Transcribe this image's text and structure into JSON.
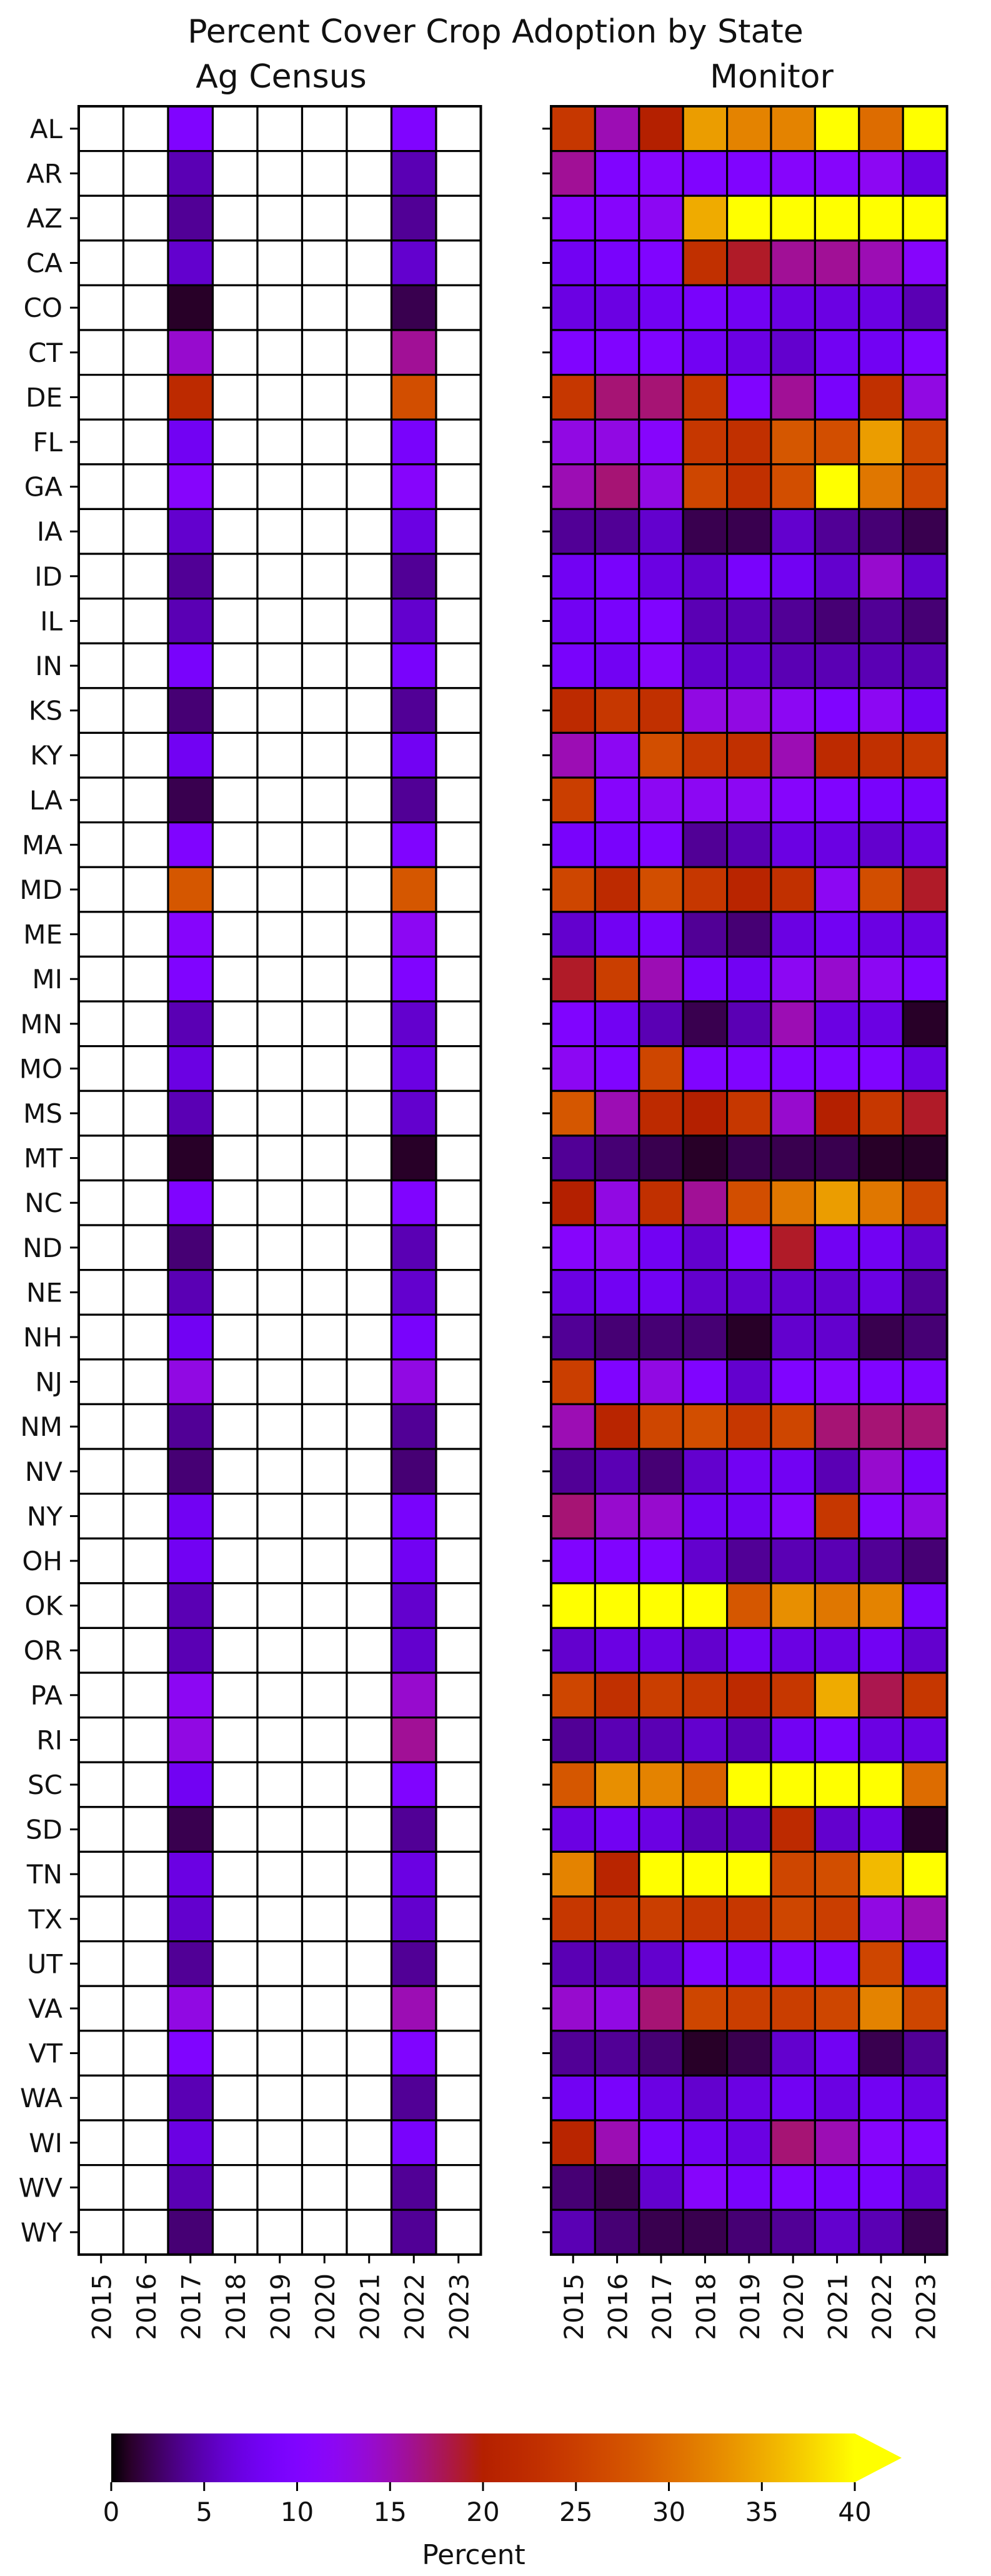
{
  "chart_data": {
    "type": "heatmap",
    "title": "Percent Cover Crop Adoption by State",
    "colorbar": {
      "label": "Percent",
      "min": 0,
      "max": 40,
      "ticks": [
        0,
        5,
        10,
        15,
        20,
        25,
        30,
        35,
        40
      ],
      "extend": "max",
      "colormap": "gnuplot"
    },
    "states": [
      "AL",
      "AR",
      "AZ",
      "CA",
      "CO",
      "CT",
      "DE",
      "FL",
      "GA",
      "IA",
      "ID",
      "IL",
      "IN",
      "KS",
      "KY",
      "LA",
      "MA",
      "MD",
      "ME",
      "MI",
      "MN",
      "MO",
      "MS",
      "MT",
      "NC",
      "ND",
      "NE",
      "NH",
      "NJ",
      "NM",
      "NV",
      "NY",
      "OH",
      "OK",
      "OR",
      "PA",
      "RI",
      "SC",
      "SD",
      "TN",
      "TX",
      "UT",
      "VA",
      "VT",
      "WA",
      "WI",
      "WV",
      "WY"
    ],
    "years": [
      "2015",
      "2016",
      "2017",
      "2018",
      "2019",
      "2020",
      "2021",
      "2022",
      "2023"
    ],
    "panels": [
      {
        "title": "Ag Census",
        "comment": "values per state, columns 2015..2023; null = no data",
        "values": [
          [
            null,
            null,
            10,
            null,
            null,
            null,
            null,
            10,
            null
          ],
          [
            null,
            null,
            5,
            null,
            null,
            null,
            null,
            5,
            null
          ],
          [
            null,
            null,
            4,
            null,
            null,
            null,
            null,
            4,
            null
          ],
          [
            null,
            null,
            6,
            null,
            null,
            null,
            null,
            6,
            null
          ],
          [
            null,
            null,
            1,
            null,
            null,
            null,
            null,
            2,
            null
          ],
          [
            null,
            null,
            14,
            null,
            null,
            null,
            null,
            16,
            null
          ],
          [
            null,
            null,
            22,
            null,
            null,
            null,
            null,
            27,
            null
          ],
          [
            null,
            null,
            8,
            null,
            null,
            null,
            null,
            9,
            null
          ],
          [
            null,
            null,
            11,
            null,
            null,
            null,
            null,
            11,
            null
          ],
          [
            null,
            null,
            6,
            null,
            null,
            null,
            null,
            7,
            null
          ],
          [
            null,
            null,
            4,
            null,
            null,
            null,
            null,
            4,
            null
          ],
          [
            null,
            null,
            5,
            null,
            null,
            null,
            null,
            6,
            null
          ],
          [
            null,
            null,
            9,
            null,
            null,
            null,
            null,
            9,
            null
          ],
          [
            null,
            null,
            3,
            null,
            null,
            null,
            null,
            4,
            null
          ],
          [
            null,
            null,
            8,
            null,
            null,
            null,
            null,
            8,
            null
          ],
          [
            null,
            null,
            2,
            null,
            null,
            null,
            null,
            4,
            null
          ],
          [
            null,
            null,
            10,
            null,
            null,
            null,
            null,
            10,
            null
          ],
          [
            null,
            null,
            28,
            null,
            null,
            null,
            null,
            28,
            null
          ],
          [
            null,
            null,
            11,
            null,
            null,
            null,
            null,
            12,
            null
          ],
          [
            null,
            null,
            10,
            null,
            null,
            null,
            null,
            10,
            null
          ],
          [
            null,
            null,
            5,
            null,
            null,
            null,
            null,
            6,
            null
          ],
          [
            null,
            null,
            7,
            null,
            null,
            null,
            null,
            7,
            null
          ],
          [
            null,
            null,
            5,
            null,
            null,
            null,
            null,
            6,
            null
          ],
          [
            null,
            null,
            1,
            null,
            null,
            null,
            null,
            1,
            null
          ],
          [
            null,
            null,
            10,
            null,
            null,
            null,
            null,
            10,
            null
          ],
          [
            null,
            null,
            3,
            null,
            null,
            null,
            null,
            5,
            null
          ],
          [
            null,
            null,
            5,
            null,
            null,
            null,
            null,
            6,
            null
          ],
          [
            null,
            null,
            8,
            null,
            null,
            null,
            null,
            9,
            null
          ],
          [
            null,
            null,
            13,
            null,
            null,
            null,
            null,
            13,
            null
          ],
          [
            null,
            null,
            4,
            null,
            null,
            null,
            null,
            4,
            null
          ],
          [
            null,
            null,
            3,
            null,
            null,
            null,
            null,
            3,
            null
          ],
          [
            null,
            null,
            8,
            null,
            null,
            null,
            null,
            9,
            null
          ],
          [
            null,
            null,
            8,
            null,
            null,
            null,
            null,
            8,
            null
          ],
          [
            null,
            null,
            5,
            null,
            null,
            null,
            null,
            6,
            null
          ],
          [
            null,
            null,
            5,
            null,
            null,
            null,
            null,
            6,
            null
          ],
          [
            null,
            null,
            12,
            null,
            null,
            null,
            null,
            14,
            null
          ],
          [
            null,
            null,
            13,
            null,
            null,
            null,
            null,
            16,
            null
          ],
          [
            null,
            null,
            8,
            null,
            null,
            null,
            null,
            10,
            null
          ],
          [
            null,
            null,
            2,
            null,
            null,
            null,
            null,
            4,
            null
          ],
          [
            null,
            null,
            7,
            null,
            null,
            null,
            null,
            7,
            null
          ],
          [
            null,
            null,
            6,
            null,
            null,
            null,
            null,
            6,
            null
          ],
          [
            null,
            null,
            4,
            null,
            null,
            null,
            null,
            4,
            null
          ],
          [
            null,
            null,
            13,
            null,
            null,
            null,
            null,
            15,
            null
          ],
          [
            null,
            null,
            10,
            null,
            null,
            null,
            null,
            10,
            null
          ],
          [
            null,
            null,
            5,
            null,
            null,
            null,
            null,
            4,
            null
          ],
          [
            null,
            null,
            7,
            null,
            null,
            null,
            null,
            9,
            null
          ],
          [
            null,
            null,
            5,
            null,
            null,
            null,
            null,
            4,
            null
          ],
          [
            null,
            null,
            3,
            null,
            null,
            null,
            null,
            4,
            null
          ]
        ]
      },
      {
        "title": "Monitor",
        "comment": "values per state, columns 2015..2023",
        "values": [
          [
            24,
            15,
            20,
            34,
            32,
            32,
            40,
            30,
            40
          ],
          [
            16,
            10,
            11,
            10,
            10,
            11,
            11,
            12,
            7
          ],
          [
            11,
            11,
            12,
            35,
            40,
            40,
            40,
            40,
            40
          ],
          [
            8,
            9,
            10,
            23,
            19,
            16,
            16,
            15,
            11
          ],
          [
            7,
            7,
            8,
            9,
            8,
            7,
            7,
            7,
            5
          ],
          [
            10,
            10,
            10,
            8,
            7,
            6,
            8,
            8,
            10
          ],
          [
            24,
            17,
            17,
            24,
            10,
            16,
            9,
            23,
            13
          ],
          [
            13,
            13,
            11,
            24,
            23,
            28,
            27,
            34,
            26
          ],
          [
            15,
            17,
            13,
            26,
            23,
            27,
            40,
            31,
            26
          ],
          [
            4,
            4,
            6,
            2,
            2,
            6,
            4,
            3,
            2
          ],
          [
            8,
            9,
            7,
            6,
            9,
            8,
            6,
            14,
            6
          ],
          [
            8,
            9,
            10,
            5,
            5,
            4,
            3,
            4,
            3
          ],
          [
            9,
            8,
            11,
            6,
            6,
            5,
            5,
            5,
            5
          ],
          [
            22,
            24,
            23,
            13,
            13,
            12,
            10,
            12,
            8
          ],
          [
            15,
            12,
            27,
            24,
            23,
            15,
            22,
            23,
            24
          ],
          [
            25,
            11,
            12,
            12,
            12,
            11,
            10,
            9,
            9
          ],
          [
            9,
            9,
            10,
            4,
            5,
            7,
            7,
            6,
            7
          ],
          [
            26,
            22,
            27,
            24,
            21,
            23,
            12,
            27,
            19
          ],
          [
            6,
            8,
            9,
            4,
            3,
            7,
            8,
            7,
            7
          ],
          [
            19,
            25,
            15,
            9,
            8,
            12,
            14,
            12,
            10
          ],
          [
            10,
            8,
            5,
            2,
            5,
            15,
            7,
            7,
            1
          ],
          [
            12,
            10,
            26,
            10,
            10,
            10,
            10,
            10,
            7
          ],
          [
            28,
            15,
            22,
            20,
            24,
            14,
            20,
            24,
            19
          ],
          [
            4,
            3,
            2,
            1,
            2,
            2,
            2,
            1,
            1
          ],
          [
            20,
            13,
            23,
            16,
            27,
            31,
            34,
            31,
            26
          ],
          [
            11,
            12,
            8,
            6,
            10,
            19,
            8,
            8,
            6
          ],
          [
            7,
            8,
            8,
            6,
            6,
            6,
            6,
            7,
            4
          ],
          [
            4,
            3,
            3,
            3,
            1,
            6,
            6,
            2,
            3
          ],
          [
            25,
            10,
            13,
            10,
            6,
            10,
            11,
            10,
            10
          ],
          [
            15,
            21,
            26,
            27,
            24,
            26,
            17,
            17,
            17
          ],
          [
            4,
            5,
            3,
            6,
            8,
            8,
            5,
            14,
            9
          ],
          [
            17,
            14,
            14,
            8,
            8,
            11,
            24,
            11,
            13
          ],
          [
            10,
            10,
            10,
            6,
            4,
            5,
            5,
            4,
            3
          ],
          [
            40,
            40,
            40,
            40,
            28,
            33,
            31,
            32,
            9
          ],
          [
            6,
            7,
            7,
            6,
            8,
            7,
            7,
            8,
            6
          ],
          [
            26,
            23,
            25,
            24,
            22,
            24,
            35,
            18,
            24
          ],
          [
            4,
            5,
            5,
            6,
            5,
            8,
            9,
            7,
            7
          ],
          [
            28,
            33,
            32,
            29,
            40,
            40,
            40,
            40,
            30
          ],
          [
            7,
            8,
            7,
            5,
            5,
            22,
            6,
            7,
            1
          ],
          [
            32,
            21,
            40,
            40,
            40,
            26,
            27,
            36,
            40
          ],
          [
            24,
            24,
            25,
            24,
            24,
            26,
            25,
            13,
            15
          ],
          [
            5,
            5,
            6,
            10,
            9,
            10,
            10,
            26,
            8
          ],
          [
            14,
            13,
            17,
            26,
            25,
            25,
            26,
            32,
            26
          ],
          [
            4,
            4,
            3,
            1,
            2,
            6,
            8,
            2,
            4
          ],
          [
            8,
            9,
            7,
            6,
            7,
            8,
            7,
            8,
            7
          ],
          [
            21,
            15,
            9,
            8,
            7,
            17,
            15,
            11,
            10
          ],
          [
            3,
            2,
            6,
            11,
            9,
            10,
            9,
            9,
            6
          ],
          [
            5,
            3,
            2,
            2,
            3,
            4,
            6,
            5,
            2
          ]
        ]
      }
    ]
  }
}
